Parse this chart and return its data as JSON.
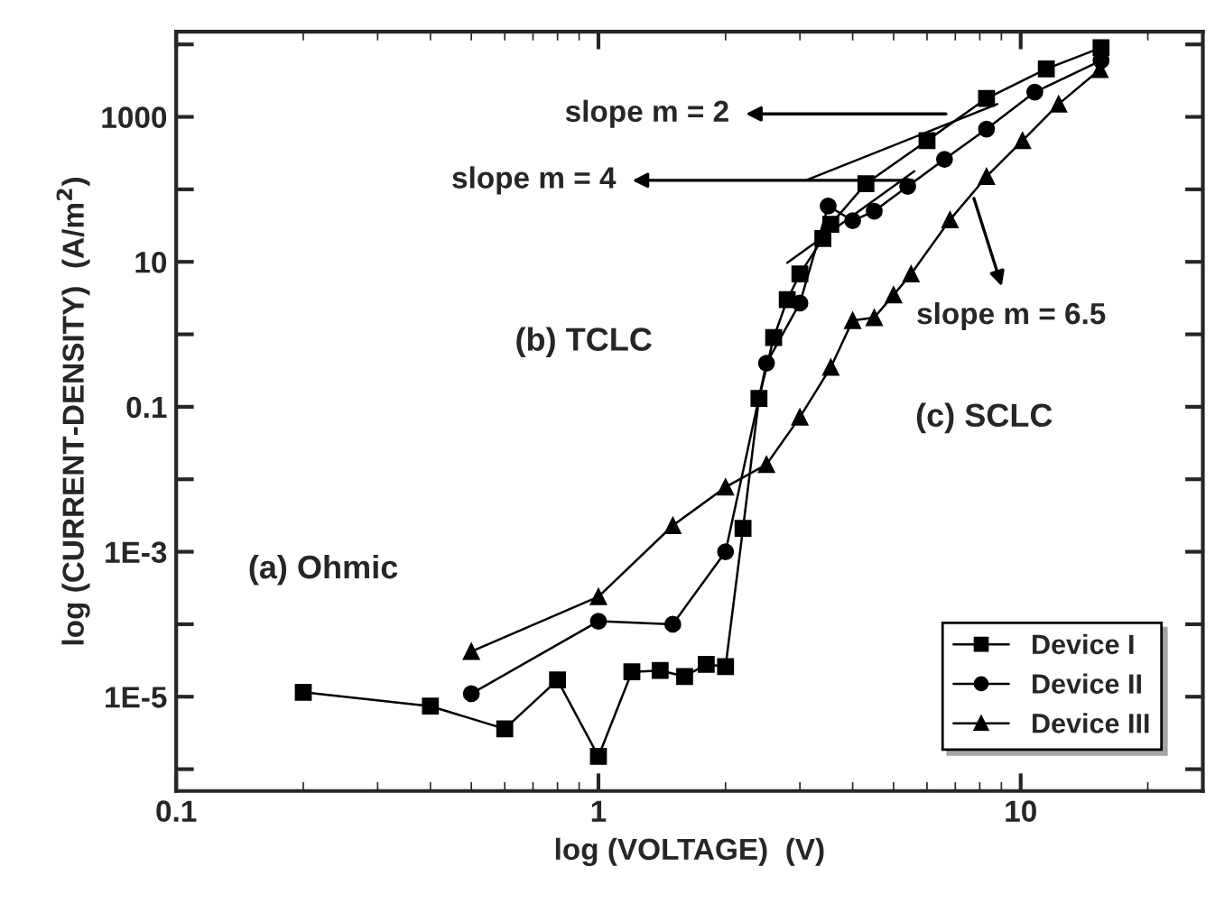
{
  "chart_data": {
    "type": "line",
    "xlabel": "log (VOLTAGE)  (V)",
    "ylabel": "log (CURRENT-DENSITY)  (A/m$^{2}$)",
    "log": "xy",
    "xlim": [
      0.1,
      27
    ],
    "ylim": [
      5e-07,
      15000
    ],
    "xticks": [
      0.1,
      1,
      10
    ],
    "yticks": [
      {
        "value": 1e-06,
        "label": null
      },
      {
        "value": 1e-05,
        "label": "1E-5"
      },
      {
        "value": 0.0001,
        "label": null
      },
      {
        "value": 0.001,
        "label": "1E-3"
      },
      {
        "value": 0.01,
        "label": null
      },
      {
        "value": 0.1,
        "label": "0.1"
      },
      {
        "value": 1,
        "label": null
      },
      {
        "value": 10,
        "label": "10"
      },
      {
        "value": 100,
        "label": null
      },
      {
        "value": 1000,
        "label": "1000"
      },
      {
        "value": 10000,
        "label": null
      }
    ],
    "grid": false,
    "legend": "bottom right",
    "series": [
      {
        "name": "Device I",
        "color": "#000000",
        "marker": "square",
        "x": [
          0.2,
          0.4,
          0.6,
          0.8,
          1.0,
          1.2,
          1.4,
          1.6,
          1.8,
          2.0,
          2.2,
          2.4,
          2.6,
          2.8,
          3.0,
          3.4,
          3.55,
          4.3,
          6.0,
          8.3,
          11.5,
          15.5
        ],
        "values": [
          1.15e-05,
          7.4e-06,
          3.6e-06,
          1.7e-05,
          1.5e-06,
          2.2e-05,
          2.3e-05,
          1.9e-05,
          2.8e-05,
          2.6e-05,
          0.0021,
          0.13,
          0.9,
          3,
          6.8,
          21,
          33,
          120,
          470,
          1800,
          4600,
          9000
        ]
      },
      {
        "name": "Device II",
        "color": "#000000",
        "marker": "circle",
        "x": [
          0.5,
          1.0,
          1.5,
          2.0,
          2.5,
          3.0,
          3.5,
          4.0,
          4.5,
          5.4,
          6.6,
          8.3,
          10.8,
          15.5
        ],
        "values": [
          1.1e-05,
          0.00011,
          0.0001,
          0.001,
          0.4,
          2.7,
          59,
          37,
          50,
          110,
          260,
          680,
          2200,
          6000
        ]
      },
      {
        "name": "Device III",
        "color": "#000000",
        "marker": "triangle",
        "x": [
          0.5,
          1.0,
          1.5,
          2.0,
          2.5,
          3.0,
          3.55,
          4.0,
          4.5,
          5.0,
          5.5,
          6.8,
          8.3,
          10.1,
          12.3,
          15.4
        ],
        "values": [
          4.2e-05,
          0.00024,
          0.0023,
          0.0078,
          0.016,
          0.072,
          0.35,
          1.55,
          1.7,
          3.5,
          6.8,
          38,
          150,
          470,
          1500,
          4500
        ]
      },
      {
        "type": "line",
        "color": "#000000",
        "marker": "none",
        "x": [
          3.1,
          8.8
        ],
        "values": [
          133,
          1500
        ]
      },
      {
        "type": "line",
        "color": "#000000",
        "marker": "none",
        "x": [
          2.8,
          5.6
        ],
        "values": [
          9.7,
          178
        ]
      }
    ],
    "annotations": [
      {
        "text": "slope m = 2",
        "x": 6.65,
        "y": 1100
      },
      {
        "text": "slope m = 4",
        "x": 5.55,
        "y": 133
      },
      {
        "text": "slope m = 6.5",
        "x": 7.75,
        "y": 75
      },
      "(a) Ohmic",
      "(b) TCLC",
      "(c) SCLC"
    ]
  }
}
